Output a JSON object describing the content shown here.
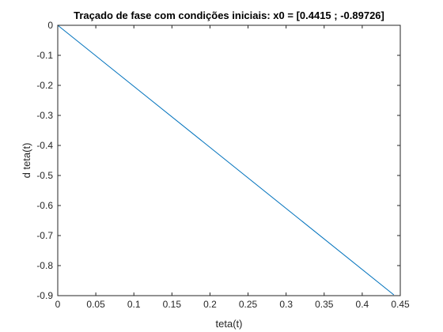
{
  "chart_data": {
    "type": "line",
    "title": "Traçado de fase com condições iniciais: x0 = [0.4415 ; -0.89726]",
    "xlabel": "teta(t)",
    "ylabel": "d teta(t)",
    "xlim": [
      0,
      0.45
    ],
    "ylim": [
      -0.9,
      0
    ],
    "xticks": [
      0,
      0.05,
      0.1,
      0.15,
      0.2,
      0.25,
      0.3,
      0.35,
      0.4,
      0.45
    ],
    "xtick_labels": [
      "0",
      "0.05",
      "0.1",
      "0.15",
      "0.2",
      "0.25",
      "0.3",
      "0.35",
      "0.4",
      "0.45"
    ],
    "yticks": [
      0,
      -0.1,
      -0.2,
      -0.3,
      -0.4,
      -0.5,
      -0.6,
      -0.7,
      -0.8,
      -0.9
    ],
    "ytick_labels": [
      "0",
      "-0.1",
      "-0.2",
      "-0.3",
      "-0.4",
      "-0.5",
      "-0.6",
      "-0.7",
      "-0.8",
      "-0.9"
    ],
    "grid": false,
    "series": [
      {
        "color": "#0072BD",
        "x": [
          0,
          0.4415
        ],
        "y": [
          0,
          -0.89726
        ]
      }
    ]
  }
}
